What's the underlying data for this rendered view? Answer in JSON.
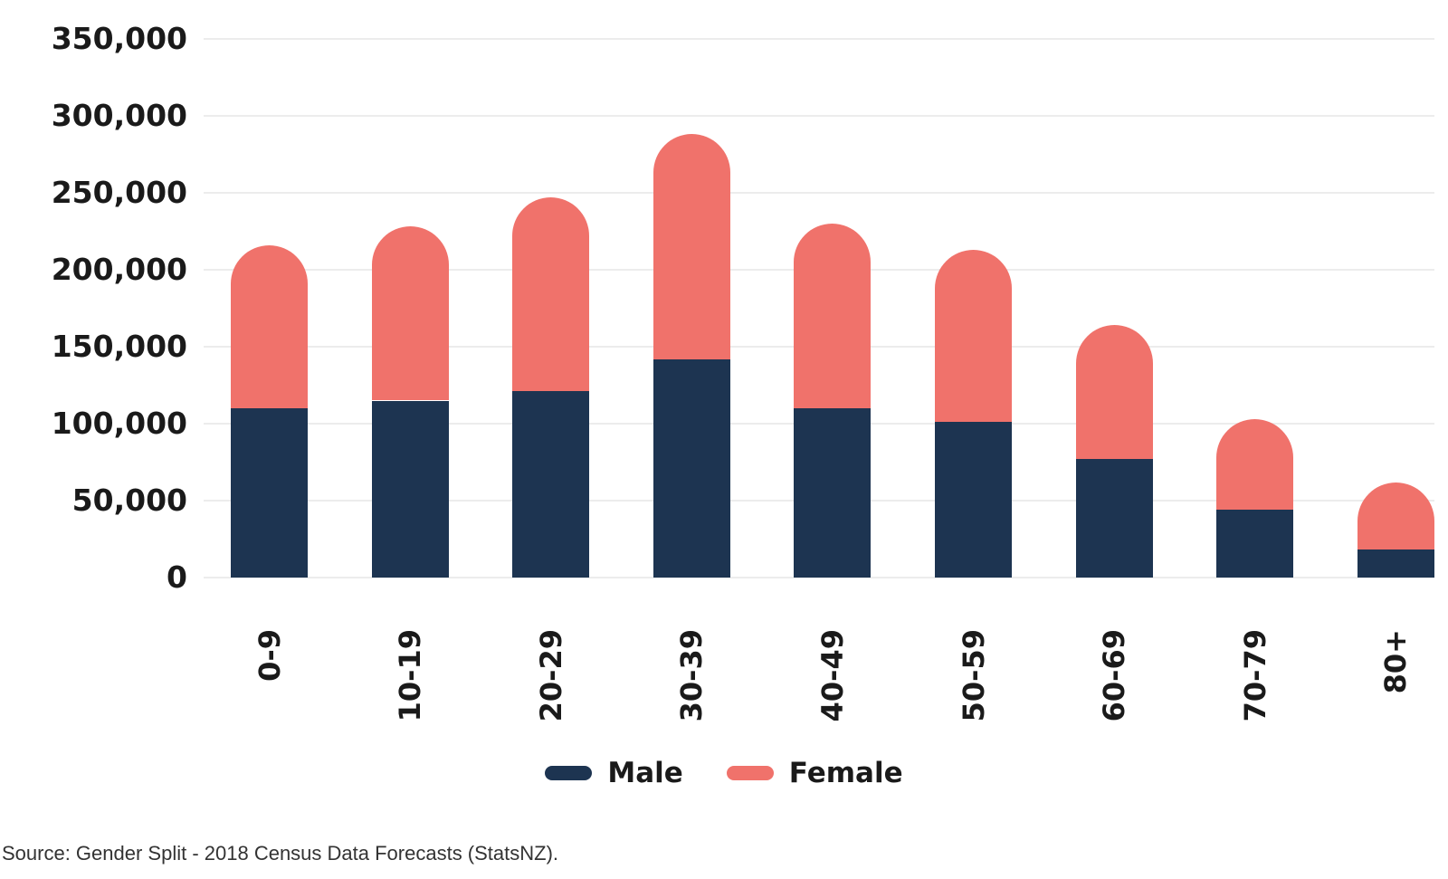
{
  "chart_data": {
    "type": "bar",
    "subtype": "stacked-vertical-rounded-top",
    "title": "",
    "categories": [
      "0-9",
      "10-19",
      "20-29",
      "30-39",
      "40-49",
      "50-59",
      "60-69",
      "70-79",
      "80+"
    ],
    "series": [
      {
        "name": "Male",
        "color": "#1d3451",
        "values": [
          110000,
          115000,
          121000,
          142000,
          110000,
          101000,
          77000,
          44000,
          18000
        ]
      },
      {
        "name": "Female",
        "color": "#f0726b",
        "values": [
          106000,
          113000,
          126000,
          146000,
          120000,
          112000,
          87000,
          59000,
          44000
        ]
      }
    ],
    "xlabel": "",
    "ylabel": "",
    "ylim": [
      0,
      350000
    ],
    "ytick_step": 50000,
    "ytick_labels": [
      "0",
      "50,000",
      "100,000",
      "150,000",
      "200,000",
      "250,000",
      "300,000",
      "350,000"
    ],
    "grid": "horizontal",
    "gridline_color": "#ececec",
    "legend_position": "bottom",
    "legend": [
      "Male",
      "Female"
    ],
    "x_tick_rotation_deg": -90
  },
  "source_note": "Source: Gender Split - 2018 Census Data Forecasts (StatsNZ).",
  "colors": {
    "male": "#1d3451",
    "female": "#f0726b",
    "text": "#1a1a1a",
    "source_text": "#333333",
    "gridline": "#ececec",
    "background": "#ffffff"
  }
}
